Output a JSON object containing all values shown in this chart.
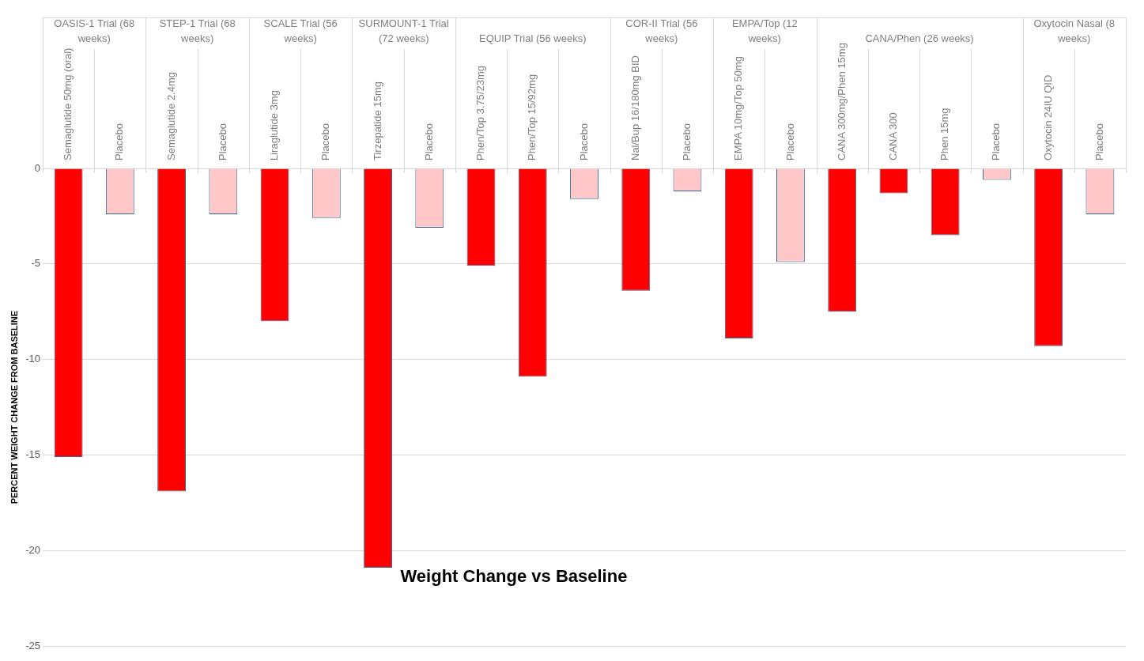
{
  "chart_data": {
    "type": "bar",
    "title": "Weight Change vs Baseline",
    "ylabel": "PERCENT WEIGHT CHANGE FROM BASELINE",
    "categories": [
      "Semaglutide 50mg (oral)",
      "Placebo",
      "Semaglutide 2.4mg",
      "Placebo",
      "Liraglutide 3mg",
      "Placebo",
      "Tirzepatide 15mg",
      "Placebo",
      "Phen/Top 3.75/23mg",
      "Phen/Top 15/92mg",
      "Placebo",
      "Nal/Bup 16/180mg BID",
      "Placebo",
      "EMPA 10mg/Top 50mg",
      "Placebo",
      "CANA 300mg/Phen 15mg",
      "CANA 300",
      "Phen 15mg",
      "Placebo",
      "Oxytocin 24IU QID",
      "Placebo"
    ],
    "values": [
      -15.1,
      -2.4,
      -16.9,
      -2.4,
      -8.0,
      -2.6,
      -20.9,
      -3.1,
      -5.1,
      -10.9,
      -1.6,
      -6.4,
      -1.2,
      -8.9,
      -4.9,
      -7.5,
      -1.3,
      -3.5,
      -0.6,
      -9.3,
      -2.4
    ],
    "colors": [
      "#ff0000",
      "#ffc7c7",
      "#ff0000",
      "#ffc7c7",
      "#ff0000",
      "#ffc7c7",
      "#ff0000",
      "#ffc7c7",
      "#ff0000",
      "#ff0000",
      "#ffc7c7",
      "#ff0000",
      "#ffc7c7",
      "#ff0000",
      "#ffc7c7",
      "#ff0000",
      "#ff0000",
      "#ff0000",
      "#ffc7c7",
      "#ff0000",
      "#ffc7c7"
    ],
    "ylim": [
      -25,
      0
    ],
    "yticks": [
      -25,
      -20,
      -15,
      -10,
      -5,
      0
    ],
    "grid": "y",
    "legend": false,
    "annotations": [
      "OASIS-1 Trial (68 weeks)",
      "STEP-1 Trial (68 weeks)",
      "SCALE Trial (56 weeks)",
      "SURMOUNT-1 Trial (72 weeks)",
      "EQUIP Trial (56 weeks)",
      "COR-II Trial (56 weeks)",
      "EMPA/Top (12 weeks)",
      "CANA/Phen (26 weeks)",
      "Oxytocin Nasal (8 weeks)"
    ]
  }
}
